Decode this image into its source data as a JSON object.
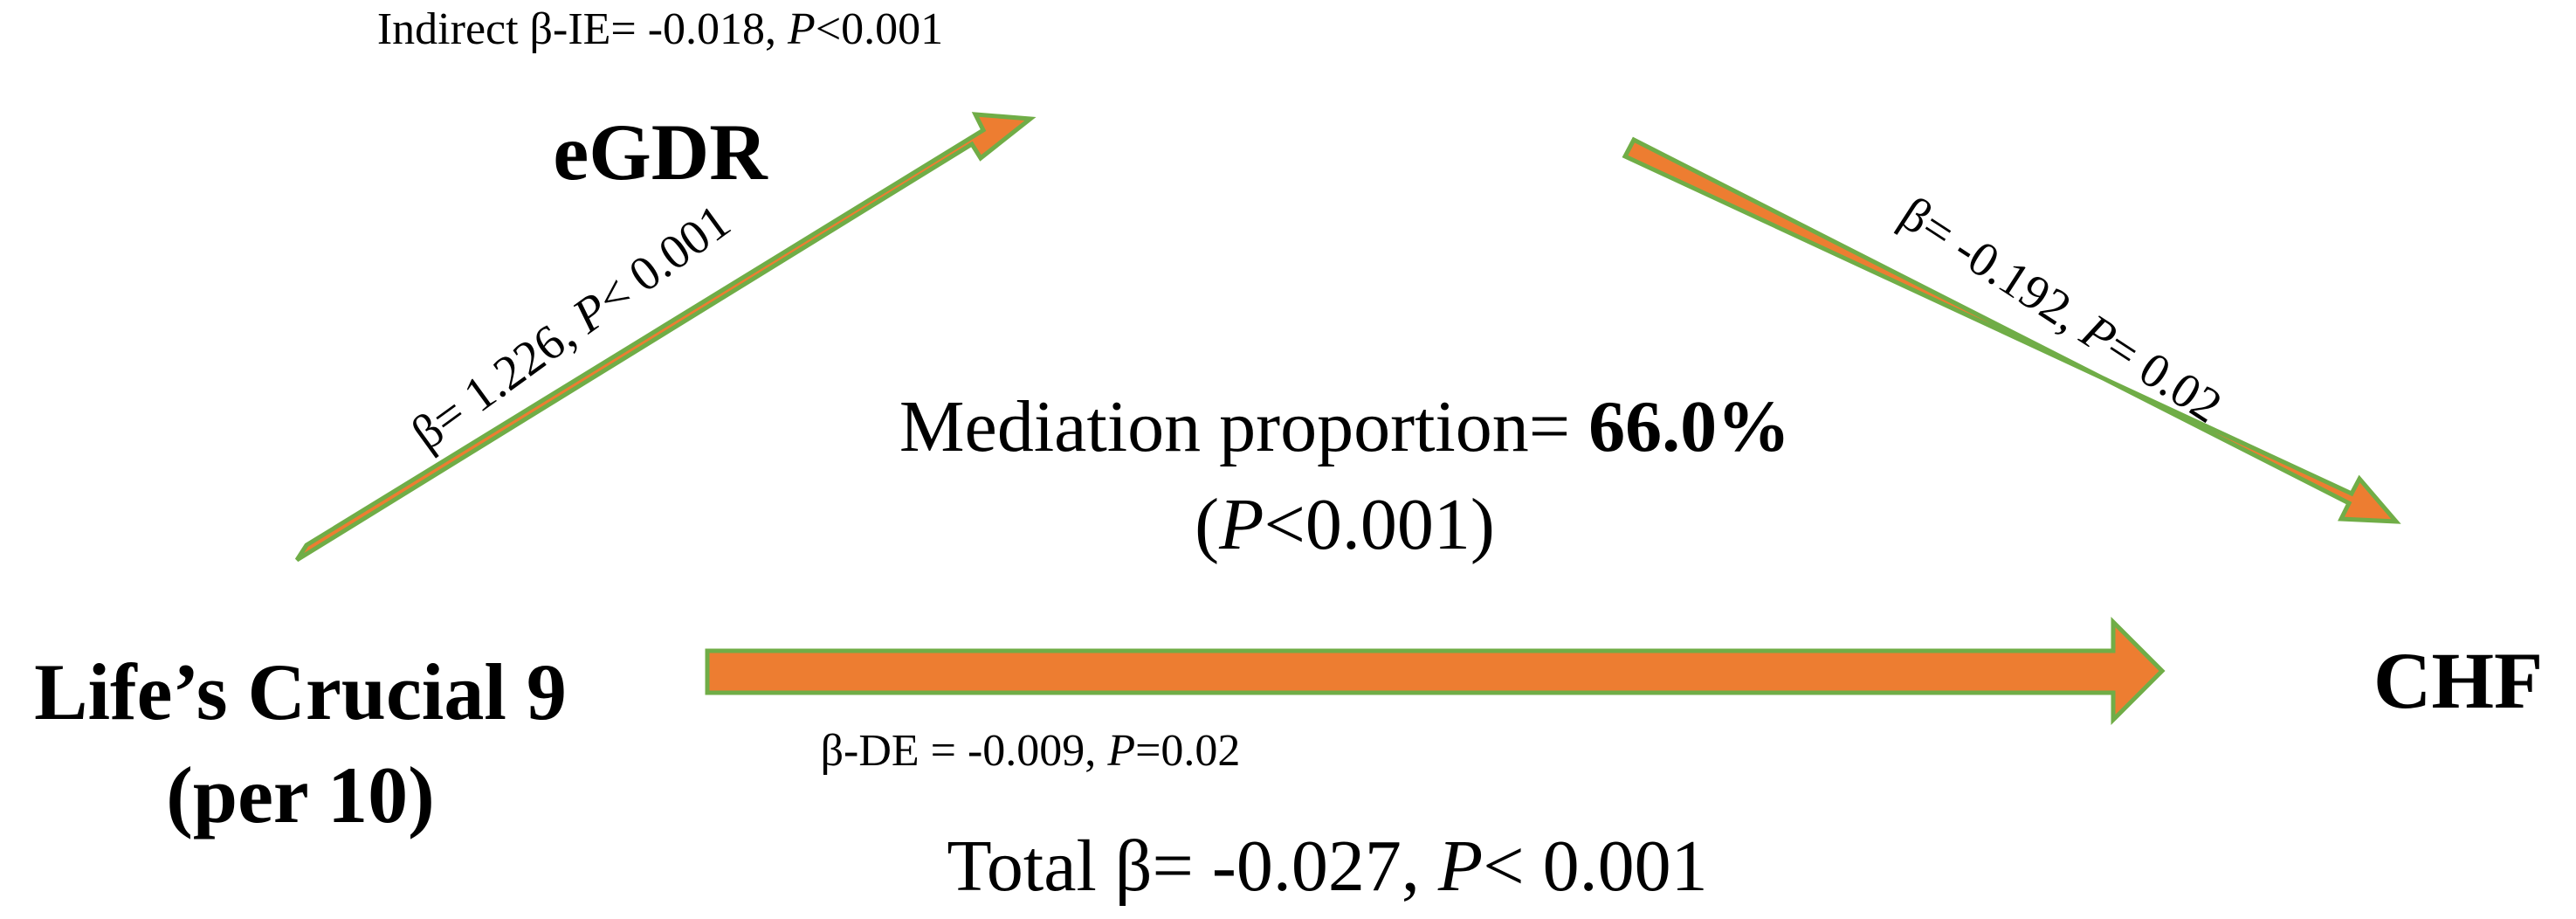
{
  "nodes": {
    "mediator": "eGDR",
    "exposure_line1": "Life’s Crucial 9",
    "exposure_line2": "(per 10)",
    "outcome": "CHF"
  },
  "indirect": {
    "prefix": "Indirect β-IE= -0.018, ",
    "p_symbol": "P",
    "p_value": "<0.001"
  },
  "path_a": {
    "prefix": "β= 1.226, ",
    "p_symbol": "P",
    "p_value": "< 0.001"
  },
  "path_b": {
    "prefix": "β= -0.192, ",
    "p_symbol": "P",
    "p_value": "= 0.02"
  },
  "mediation": {
    "prefix": "Mediation proportion= ",
    "value": "66.0%",
    "open_paren": "(",
    "p_symbol": "P",
    "p_value": "<0.001)"
  },
  "direct": {
    "prefix": "β-DE = -0.009, ",
    "p_symbol": "P",
    "p_value": "=0.02"
  },
  "total": {
    "prefix": "Total β= -0.027, ",
    "p_symbol": "P",
    "p_value": "< 0.001"
  },
  "colors": {
    "arrow_fill": "#ED7D31",
    "arrow_outline": "#70AD47",
    "text": "#000000"
  }
}
